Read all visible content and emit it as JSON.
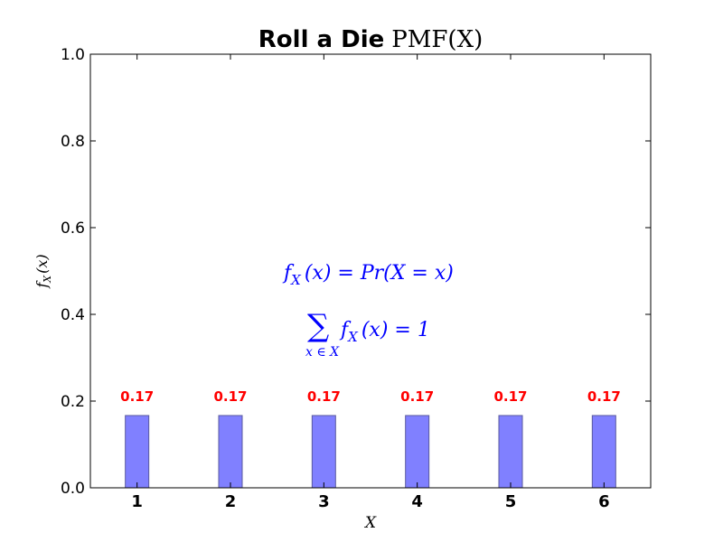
{
  "chart_data": {
    "type": "bar",
    "title": "Roll a Die",
    "title_math": "PMF(X)",
    "xlabel": "X",
    "ylabel": "f_X(x)",
    "categories": [
      "1",
      "2",
      "3",
      "4",
      "5",
      "6"
    ],
    "x": [
      1,
      2,
      3,
      4,
      5,
      6
    ],
    "values": [
      0.1667,
      0.1667,
      0.1667,
      0.1667,
      0.1667,
      0.1667
    ],
    "value_labels": [
      "0.17",
      "0.17",
      "0.17",
      "0.17",
      "0.17",
      "0.17"
    ],
    "xlim": [
      0.5,
      6.5
    ],
    "ylim": [
      0.0,
      1.0
    ],
    "yticks": [
      "0.0",
      "0.2",
      "0.4",
      "0.6",
      "0.8",
      "1.0"
    ],
    "grid": false,
    "bar_color": "#8080ff",
    "bar_edge_color": "#5a5a9e",
    "label_color": "#ff0000",
    "annotation_color": "#0000ff",
    "annotations": [
      {
        "id": "pmf-definition",
        "text": "f_X(x) = Pr(X = x)"
      },
      {
        "id": "pmf-sum",
        "text": "∑_{x∈X} f_X(x) = 1"
      }
    ]
  }
}
